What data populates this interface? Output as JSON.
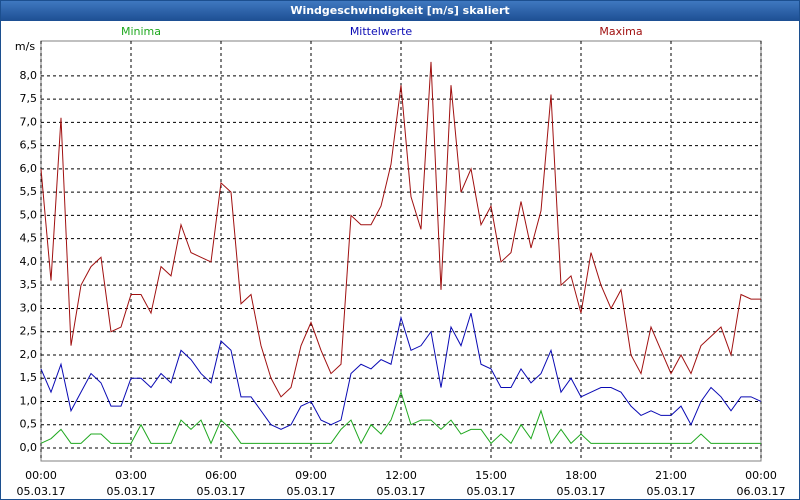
{
  "chart_data": {
    "type": "line",
    "title": "Windgeschwindigkeit [m/s] skaliert",
    "y_label": "m/s",
    "x": [
      0,
      20,
      40,
      60,
      80,
      100,
      120,
      140,
      160,
      180,
      200,
      220,
      240,
      260,
      280,
      300,
      320,
      340,
      360,
      380,
      400,
      420,
      440,
      460,
      480,
      500,
      520,
      540,
      560,
      580,
      600,
      620,
      640,
      660,
      680,
      700,
      720,
      740,
      760,
      780,
      800,
      820,
      840,
      860,
      880,
      900,
      920,
      940,
      960,
      980,
      1000,
      1020,
      1040,
      1060,
      1080,
      1100,
      1120,
      1140,
      1160,
      1180,
      1200,
      1220,
      1240,
      1260,
      1280,
      1300,
      1320,
      1340,
      1360,
      1380,
      1400,
      1420,
      1440
    ],
    "xlim": [
      0,
      1440
    ],
    "xticks": [
      {
        "value": 0,
        "label": "00:00",
        "date": "05.03.17"
      },
      {
        "value": 180,
        "label": "03:00",
        "date": "05.03.17"
      },
      {
        "value": 360,
        "label": "06:00",
        "date": "05.03.17"
      },
      {
        "value": 540,
        "label": "09:00",
        "date": "05.03.17"
      },
      {
        "value": 720,
        "label": "12:00",
        "date": "05.03.17"
      },
      {
        "value": 900,
        "label": "15:00",
        "date": "05.03.17"
      },
      {
        "value": 1080,
        "label": "18:00",
        "date": "05.03.17"
      },
      {
        "value": 1260,
        "label": "21:00",
        "date": "05.03.17"
      },
      {
        "value": 1440,
        "label": "00:00",
        "date": "06.03.17"
      }
    ],
    "ylim": [
      -0.28,
      8.75
    ],
    "yticks": [
      {
        "value": 0,
        "label": "0,0"
      },
      {
        "value": 0.5,
        "label": "0,5"
      },
      {
        "value": 1,
        "label": "1,0"
      },
      {
        "value": 1.5,
        "label": "1,5"
      },
      {
        "value": 2,
        "label": "2,0"
      },
      {
        "value": 2.5,
        "label": "2,5"
      },
      {
        "value": 3,
        "label": "3,0"
      },
      {
        "value": 3.5,
        "label": "3,5"
      },
      {
        "value": 4,
        "label": "4,0"
      },
      {
        "value": 4.5,
        "label": "4,5"
      },
      {
        "value": 5,
        "label": "5,0"
      },
      {
        "value": 5.5,
        "label": "5,5"
      },
      {
        "value": 6,
        "label": "6,0"
      },
      {
        "value": 6.5,
        "label": "6,5"
      },
      {
        "value": 7,
        "label": "7,0"
      },
      {
        "value": 7.5,
        "label": "7,5"
      },
      {
        "value": 8,
        "label": "8,0"
      }
    ],
    "grid": true,
    "series": [
      {
        "name": "Minima",
        "color": "#1fa81f",
        "values": [
          0.1,
          0.2,
          0.4,
          0.1,
          0.1,
          0.3,
          0.3,
          0.1,
          0.1,
          0.1,
          0.5,
          0.1,
          0.1,
          0.1,
          0.6,
          0.4,
          0.6,
          0.1,
          0.6,
          0.4,
          0.1,
          0.1,
          0.1,
          0.1,
          0.1,
          0.1,
          0.1,
          0.1,
          0.1,
          0.1,
          0.4,
          0.6,
          0.1,
          0.5,
          0.3,
          0.6,
          1.2,
          0.5,
          0.6,
          0.6,
          0.4,
          0.6,
          0.3,
          0.4,
          0.4,
          0.1,
          0.3,
          0.1,
          0.5,
          0.2,
          0.8,
          0.1,
          0.4,
          0.1,
          0.3,
          0.1,
          0.1,
          0.1,
          0.1,
          0.1,
          0.1,
          0.1,
          0.1,
          0.1,
          0.1,
          0.1,
          0.3,
          0.1,
          0.1,
          0.1,
          0.1,
          0.1,
          0.1
        ]
      },
      {
        "name": "Mittelwerte",
        "color": "#0a0ab4",
        "values": [
          1.7,
          1.2,
          1.8,
          0.8,
          1.2,
          1.6,
          1.4,
          0.9,
          0.9,
          1.5,
          1.5,
          1.3,
          1.6,
          1.4,
          2.1,
          1.9,
          1.6,
          1.4,
          2.3,
          2.1,
          1.1,
          1.1,
          0.8,
          0.5,
          0.4,
          0.5,
          0.9,
          1.0,
          0.6,
          0.5,
          0.6,
          1.6,
          1.8,
          1.7,
          1.9,
          1.8,
          2.8,
          2.1,
          2.2,
          2.5,
          1.3,
          2.6,
          2.2,
          2.9,
          1.8,
          1.7,
          1.3,
          1.3,
          1.7,
          1.4,
          1.6,
          2.1,
          1.2,
          1.5,
          1.1,
          1.2,
          1.3,
          1.3,
          1.2,
          0.9,
          0.7,
          0.8,
          0.7,
          0.7,
          0.9,
          0.5,
          1.0,
          1.3,
          1.1,
          0.8,
          1.1,
          1.1,
          1.0
        ]
      },
      {
        "name": "Maxima",
        "color": "#a01010",
        "values": [
          6.0,
          3.6,
          7.1,
          2.2,
          3.5,
          3.9,
          4.1,
          2.5,
          2.6,
          3.3,
          3.3,
          2.9,
          3.9,
          3.7,
          4.8,
          4.2,
          4.1,
          4.0,
          5.7,
          5.5,
          3.1,
          3.3,
          2.2,
          1.5,
          1.1,
          1.3,
          2.2,
          2.7,
          2.1,
          1.6,
          1.8,
          5.0,
          4.8,
          4.8,
          5.2,
          6.1,
          7.8,
          5.4,
          4.7,
          8.3,
          3.4,
          7.8,
          5.5,
          6.0,
          4.8,
          5.2,
          4.0,
          4.2,
          5.3,
          4.3,
          5.1,
          7.6,
          3.5,
          3.7,
          2.9,
          4.2,
          3.5,
          3.0,
          3.4,
          2.0,
          1.6,
          2.6,
          2.1,
          1.6,
          2.0,
          1.6,
          2.2,
          2.4,
          2.6,
          2.0,
          3.3,
          3.2,
          3.2
        ]
      }
    ]
  }
}
